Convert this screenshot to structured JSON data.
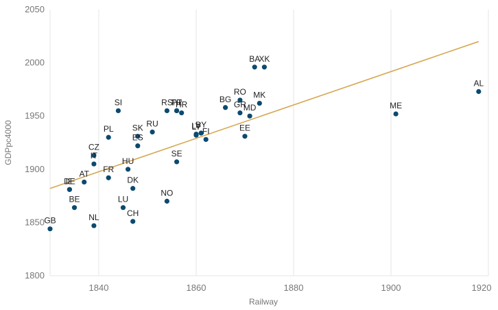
{
  "chart_data": {
    "type": "scatter",
    "title": "",
    "xlabel": "Railway",
    "ylabel": "GDPpc4000",
    "xlim": [
      1830,
      1920
    ],
    "ylim": [
      1800,
      2050
    ],
    "xticks": [
      1840,
      1860,
      1880,
      1900,
      1920
    ],
    "yticks": [
      1800,
      1850,
      1900,
      1950,
      2000,
      2050
    ],
    "grid": "vertical",
    "legend": "none",
    "colors": {
      "points": "#0b4a6f",
      "trend": "#d6a750",
      "grid": "#e6e6e6",
      "text": "#777777"
    },
    "trend_line": {
      "x": [
        1830,
        1918
      ],
      "y": [
        1882,
        2020
      ]
    },
    "points": [
      {
        "label": "GB",
        "x": 1830,
        "y": 1844
      },
      {
        "label": "IE",
        "x": 1834,
        "y": 1881
      },
      {
        "label": "DE",
        "x": 1834,
        "y": 1881
      },
      {
        "label": "BE",
        "x": 1835,
        "y": 1864
      },
      {
        "label": "AT",
        "x": 1837,
        "y": 1888
      },
      {
        "label": "CZ",
        "x": 1839,
        "y": 1913
      },
      {
        "label": "IT",
        "x": 1839,
        "y": 1905
      },
      {
        "label": "NL",
        "x": 1839,
        "y": 1847
      },
      {
        "label": "PL",
        "x": 1842,
        "y": 1930
      },
      {
        "label": "FR",
        "x": 1842,
        "y": 1892
      },
      {
        "label": "SI",
        "x": 1844,
        "y": 1955
      },
      {
        "label": "LU",
        "x": 1845,
        "y": 1864
      },
      {
        "label": "HU",
        "x": 1846,
        "y": 1900
      },
      {
        "label": "DK",
        "x": 1847,
        "y": 1882
      },
      {
        "label": "CH",
        "x": 1847,
        "y": 1851
      },
      {
        "label": "SK",
        "x": 1848,
        "y": 1931
      },
      {
        "label": "ES",
        "x": 1848,
        "y": 1922
      },
      {
        "label": "RU",
        "x": 1851,
        "y": 1935
      },
      {
        "label": "NO",
        "x": 1854,
        "y": 1870
      },
      {
        "label": "RS",
        "x": 1854,
        "y": 1955
      },
      {
        "label": "TR",
        "x": 1856,
        "y": 1955
      },
      {
        "label": "PT",
        "x": 1856,
        "y": 1955
      },
      {
        "label": "HR",
        "x": 1857,
        "y": 1953
      },
      {
        "label": "SE",
        "x": 1856,
        "y": 1907
      },
      {
        "label": "LV",
        "x": 1860,
        "y": 1933
      },
      {
        "label": "LT",
        "x": 1860,
        "y": 1932
      },
      {
        "label": "BY",
        "x": 1861,
        "y": 1934
      },
      {
        "label": "FI",
        "x": 1862,
        "y": 1928
      },
      {
        "label": "BG",
        "x": 1866,
        "y": 1958
      },
      {
        "label": "RO",
        "x": 1869,
        "y": 1965
      },
      {
        "label": "GR",
        "x": 1869,
        "y": 1953
      },
      {
        "label": "MD",
        "x": 1871,
        "y": 1950
      },
      {
        "label": "EE",
        "x": 1870,
        "y": 1931
      },
      {
        "label": "MK",
        "x": 1873,
        "y": 1962
      },
      {
        "label": "BA",
        "x": 1872,
        "y": 1996
      },
      {
        "label": "XK",
        "x": 1874,
        "y": 1996
      },
      {
        "label": "ME",
        "x": 1901,
        "y": 1952
      },
      {
        "label": "AL",
        "x": 1918,
        "y": 1973
      }
    ]
  }
}
